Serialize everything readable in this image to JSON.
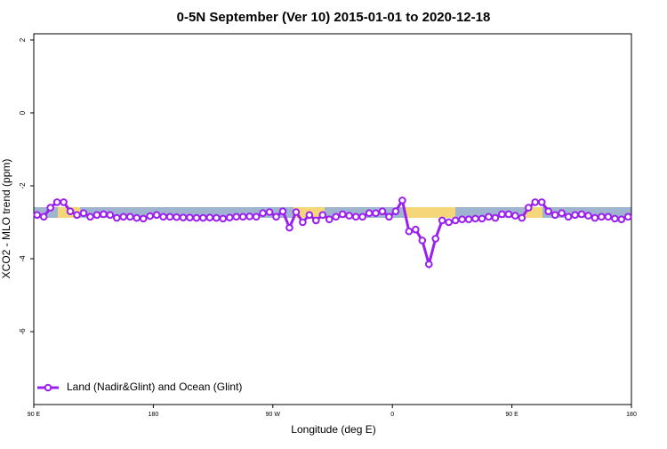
{
  "chart_data": {
    "type": "line",
    "title": "0-5N September (Ver 10)   2015-01-01 to 2020-12-18",
    "x_label": "Longitude (deg E)",
    "y_label": "XCO2 - MLO trend (ppm)",
    "xlim": [
      90,
      540
    ],
    "ylim": [
      -8,
      2.17
    ],
    "xticks": [
      {
        "value": 90,
        "label": "90 E"
      },
      {
        "value": 180,
        "label": "180"
      },
      {
        "value": 270,
        "label": "90 W"
      },
      {
        "value": 360,
        "label": "0"
      },
      {
        "value": 450,
        "label": "90 E"
      },
      {
        "value": 540,
        "label": "180"
      }
    ],
    "yticks": [
      2,
      0,
      -2,
      -4,
      -6
    ],
    "legend": "bottom-left",
    "x": [
      92.5,
      97.5,
      102.5,
      107.5,
      112.5,
      117.5,
      122.5,
      127.5,
      132.5,
      137.5,
      142.5,
      147.5,
      152.5,
      157.5,
      162.5,
      167.5,
      172.5,
      177.5,
      182.5,
      187.5,
      192.5,
      197.5,
      202.5,
      207.5,
      212.5,
      217.5,
      222.5,
      227.5,
      232.5,
      237.5,
      242.5,
      247.5,
      252.5,
      257.5,
      262.5,
      267.5,
      272.5,
      277.5,
      282.5,
      287.5,
      292.5,
      297.5,
      302.5,
      307.5,
      312.5,
      317.5,
      322.5,
      327.5,
      332.5,
      337.5,
      342.5,
      347.5,
      352.5,
      357.5,
      362.5,
      367.5,
      372.5,
      377.5,
      382.5,
      387.5,
      392.5,
      397.5,
      402.5,
      407.5,
      412.5,
      417.5,
      422.5,
      427.5,
      432.5,
      437.5,
      442.5,
      447.5,
      452.5,
      457.5,
      462.5,
      467.5,
      472.5,
      477.5,
      482.5,
      487.5,
      492.5,
      497.5,
      502.5,
      507.5,
      512.5,
      517.5,
      522.5,
      527.5,
      532.5,
      537.5
    ],
    "series": [
      {
        "name": "Land (Nadir&Glint) and Ocean (Glint)",
        "color": "#9b1ff0",
        "values": [
          -2.8,
          -2.85,
          -2.6,
          -2.45,
          -2.45,
          -2.7,
          -2.8,
          -2.75,
          -2.85,
          -2.8,
          -2.78,
          -2.8,
          -2.88,
          -2.85,
          -2.85,
          -2.88,
          -2.9,
          -2.83,
          -2.8,
          -2.85,
          -2.85,
          -2.86,
          -2.87,
          -2.87,
          -2.88,
          -2.88,
          -2.87,
          -2.88,
          -2.9,
          -2.87,
          -2.85,
          -2.85,
          -2.84,
          -2.85,
          -2.75,
          -2.72,
          -2.85,
          -2.7,
          -3.15,
          -2.72,
          -3.0,
          -2.8,
          -2.95,
          -2.8,
          -2.92,
          -2.85,
          -2.78,
          -2.82,
          -2.85,
          -2.85,
          -2.75,
          -2.75,
          -2.7,
          -2.85,
          -2.7,
          -2.4,
          -3.25,
          -3.2,
          -3.5,
          -4.15,
          -3.45,
          -2.95,
          -3.0,
          -2.95,
          -2.92,
          -2.92,
          -2.9,
          -2.9,
          -2.85,
          -2.88,
          -2.78,
          -2.78,
          -2.82,
          -2.88,
          -2.6,
          -2.45,
          -2.45,
          -2.7,
          -2.8,
          -2.75,
          -2.85,
          -2.8,
          -2.78,
          -2.82,
          -2.88,
          -2.85,
          -2.85,
          -2.9,
          -2.92,
          -2.85
        ]
      }
    ]
  }
}
